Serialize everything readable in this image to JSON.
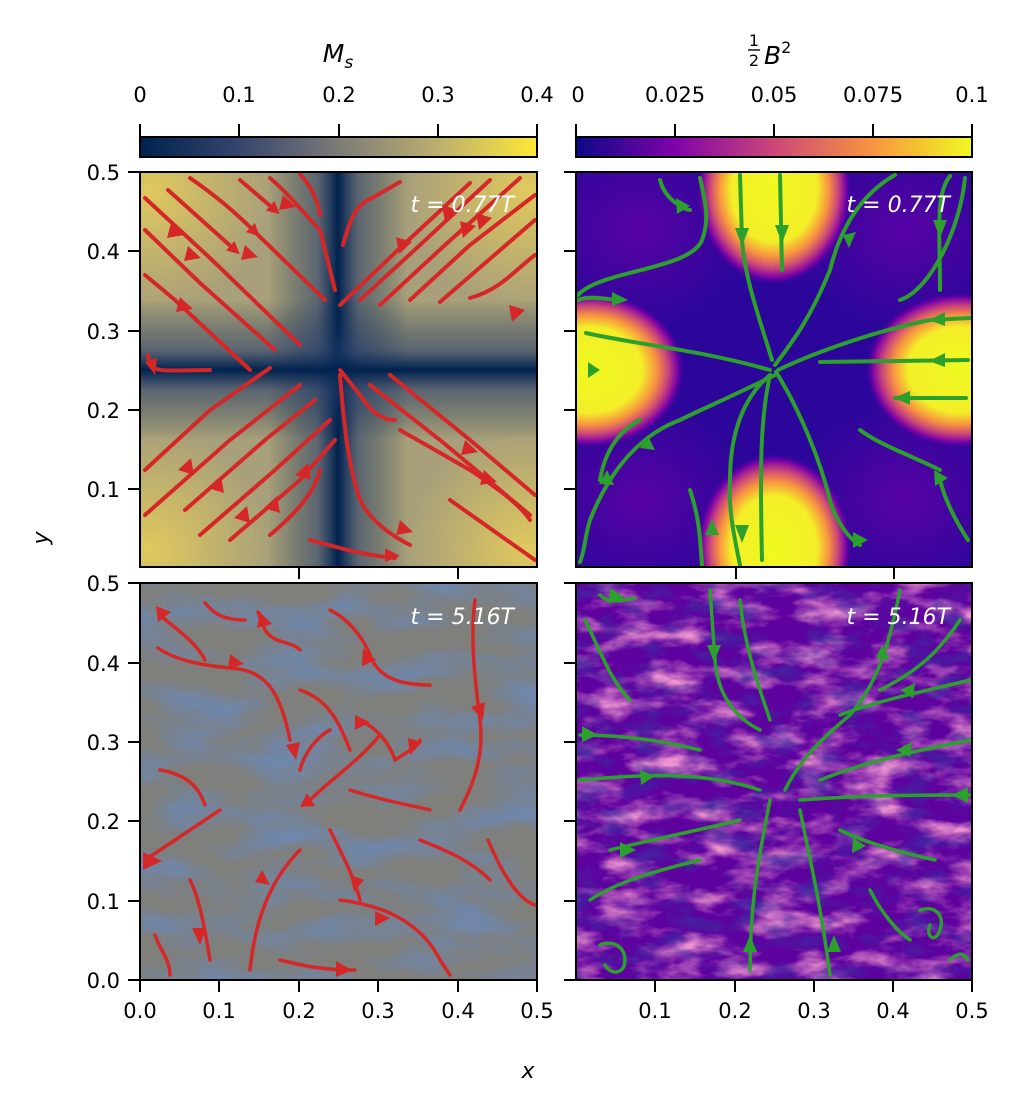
{
  "chart_data": [
    {
      "type": "heatmap",
      "panel": "top-left",
      "field": "M_s",
      "time_label": "t = 0.77T",
      "xlim": [
        0,
        0.5
      ],
      "ylim": [
        0,
        0.5
      ],
      "colorbar": {
        "title": "M_s",
        "ticks": [
          "0",
          "0.1",
          "0.2",
          "0.3",
          "0.4"
        ],
        "range": [
          0,
          0.4
        ],
        "colormap": "cividis"
      },
      "streamline_color": "#d62728",
      "pattern": "X-point flow centered at (0.25, 0.25); low M_s along x=0.25 and y=0.25, high in corners"
    },
    {
      "type": "heatmap",
      "panel": "top-right",
      "field": "B^2/2",
      "time_label": "t = 0.77T",
      "xlim": [
        0,
        0.5
      ],
      "ylim": [
        0,
        0.5
      ],
      "colorbar": {
        "title": "½B²",
        "ticks": [
          "0",
          "0.025",
          "0.05",
          "0.075",
          "0.1"
        ],
        "range": [
          0,
          0.1
        ],
        "colormap": "plasma"
      },
      "streamline_color": "#2ca02c",
      "pattern": "four high-field lobes at (0.25,0.5), (0.25,0), (0,0.25), (0.5,0.25)"
    },
    {
      "type": "heatmap",
      "panel": "bottom-left",
      "field": "M_s",
      "time_label": "t = 5.16T",
      "xlim": [
        0,
        0.5
      ],
      "ylim": [
        0,
        0.5
      ],
      "streamline_color": "#d62728",
      "pattern": "turbulent"
    },
    {
      "type": "heatmap",
      "panel": "bottom-right",
      "field": "B^2/2",
      "time_label": "t = 5.16T",
      "xlim": [
        0,
        0.5
      ],
      "ylim": [
        0,
        0.5
      ],
      "streamline_color": "#2ca02c",
      "pattern": "turbulent"
    }
  ],
  "colorbars": {
    "left": {
      "title_base": "M",
      "title_sub": "s",
      "ticks": [
        "0",
        "0.1",
        "0.2",
        "0.3",
        "0.4"
      ]
    },
    "right": {
      "title_frac_num": "1",
      "title_frac_den": "2",
      "title_base": "B",
      "title_sup": "2",
      "ticks": [
        "0",
        "0.025",
        "0.05",
        "0.075",
        "0.1"
      ]
    }
  },
  "panels": {
    "top_left_time": "t = 0.77T",
    "top_right_time": "t = 0.77T",
    "bottom_left_time": "t = 5.16T",
    "bottom_right_time": "t = 5.16T"
  },
  "axes": {
    "xlabel": "x",
    "ylabel": "y",
    "top_y_ticks": [
      "0.1",
      "0.2",
      "0.3",
      "0.4",
      "0.5"
    ],
    "bottom_y_ticks": [
      "0.0",
      "0.1",
      "0.2",
      "0.3",
      "0.4",
      "0.5"
    ],
    "left_x_ticks": [
      "0.0",
      "0.1",
      "0.2",
      "0.3",
      "0.4",
      "0.5"
    ],
    "right_x_ticks": [
      "0.1",
      "0.2",
      "0.3",
      "0.4",
      "0.5"
    ]
  },
  "colors": {
    "stream_red": "#d62728",
    "stream_green": "#2ca02c",
    "cividis_low": "#00224e",
    "cividis_high": "#fee838",
    "plasma_low": "#0d0887",
    "plasma_high": "#f0f921"
  }
}
